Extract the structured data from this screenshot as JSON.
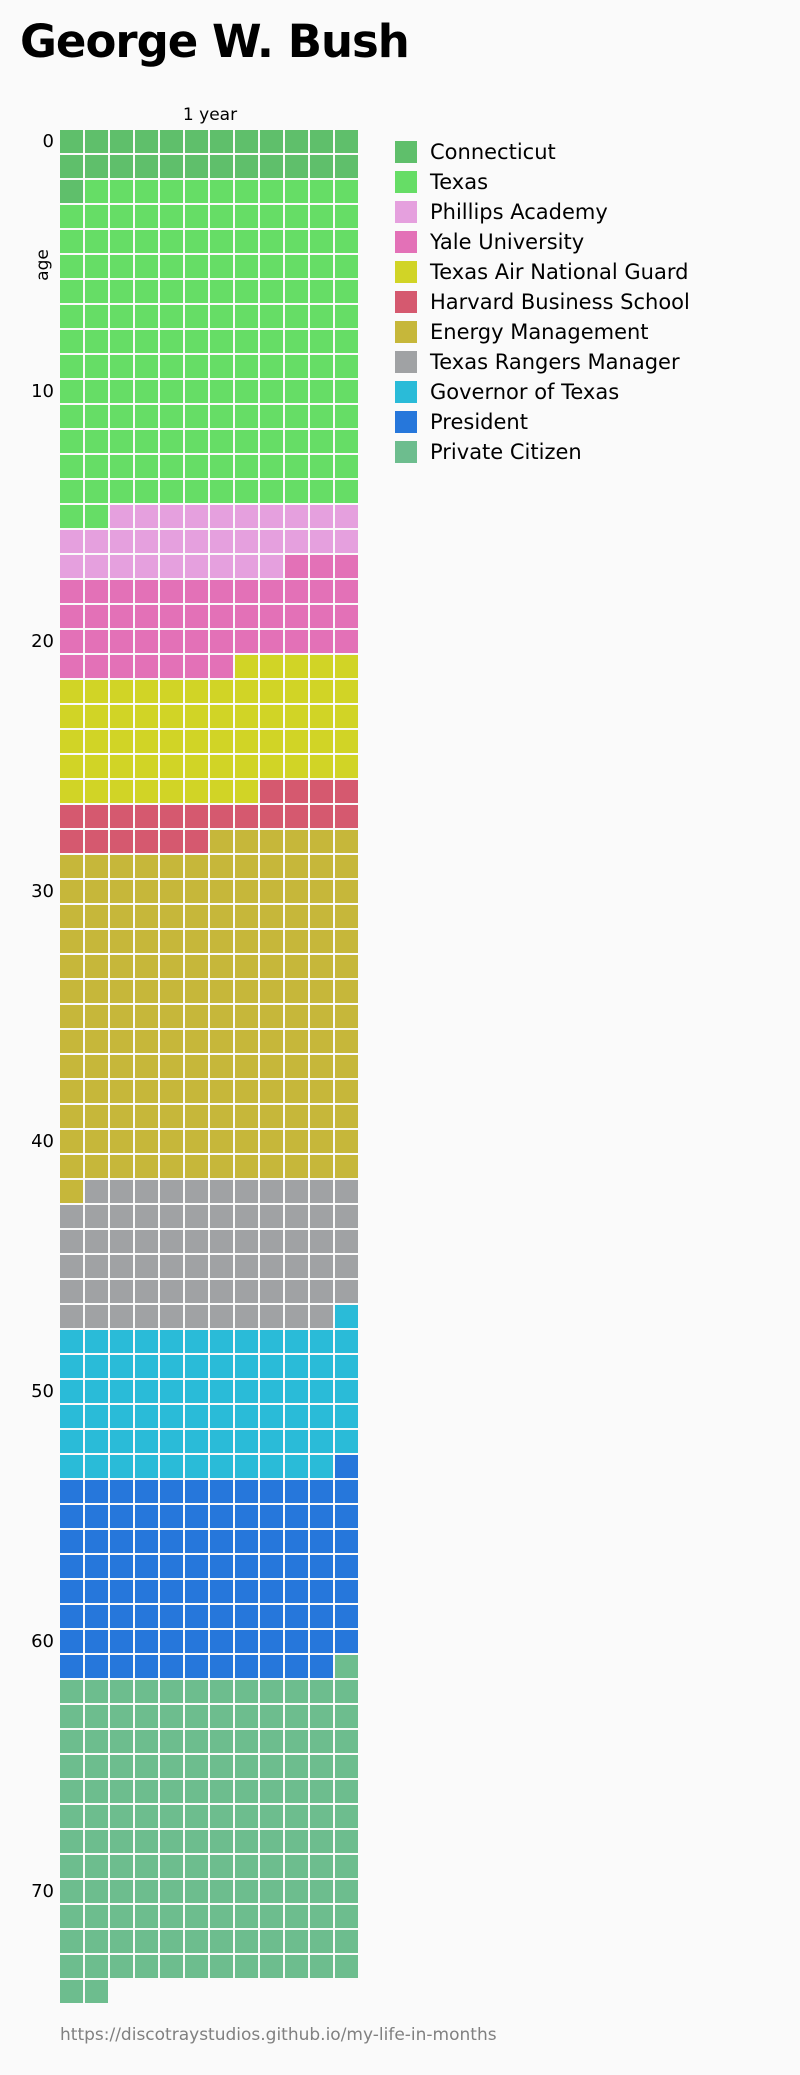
{
  "chart_data": {
    "type": "waffle",
    "title": "George W. Bush",
    "column_label": "1 year",
    "ylabel": "age",
    "y_ticks": [
      0,
      10,
      20,
      30,
      40,
      50,
      60,
      70
    ],
    "months_per_row": 12,
    "total_months": 890,
    "legend_placement": "top-right",
    "cell_fill_order": "row-major, one row per year of age, one column per month",
    "categories": [
      {
        "label": "Connecticut",
        "color": "#5fbf6b",
        "start_month": 0,
        "months": 25
      },
      {
        "label": "Texas",
        "color": "#66dd66",
        "start_month": 25,
        "months": 157
      },
      {
        "label": "Phillips Academy",
        "color": "#e5a0de",
        "start_month": 182,
        "months": 31
      },
      {
        "label": "Yale University",
        "color": "#e371b7",
        "start_month": 213,
        "months": 46
      },
      {
        "label": "Texas Air National Guard",
        "color": "#d1d426",
        "start_month": 259,
        "months": 61
      },
      {
        "label": "Harvard Business School",
        "color": "#d5596f",
        "start_month": 320,
        "months": 22
      },
      {
        "label": "Energy Management",
        "color": "#c6b73a",
        "start_month": 342,
        "months": 163
      },
      {
        "label": "Texas Rangers Manager",
        "color": "#a0a2a4",
        "start_month": 505,
        "months": 70
      },
      {
        "label": "Governor of Texas",
        "color": "#2abbd8",
        "start_month": 575,
        "months": 72
      },
      {
        "label": "President",
        "color": "#2677db",
        "start_month": 647,
        "months": 96
      },
      {
        "label": "Private Citizen",
        "color": "#6dbd8e",
        "start_month": 743,
        "months": 147
      }
    ]
  },
  "footer": {
    "source_url": "https://discotraystudios.github.io/my-life-in-months"
  }
}
